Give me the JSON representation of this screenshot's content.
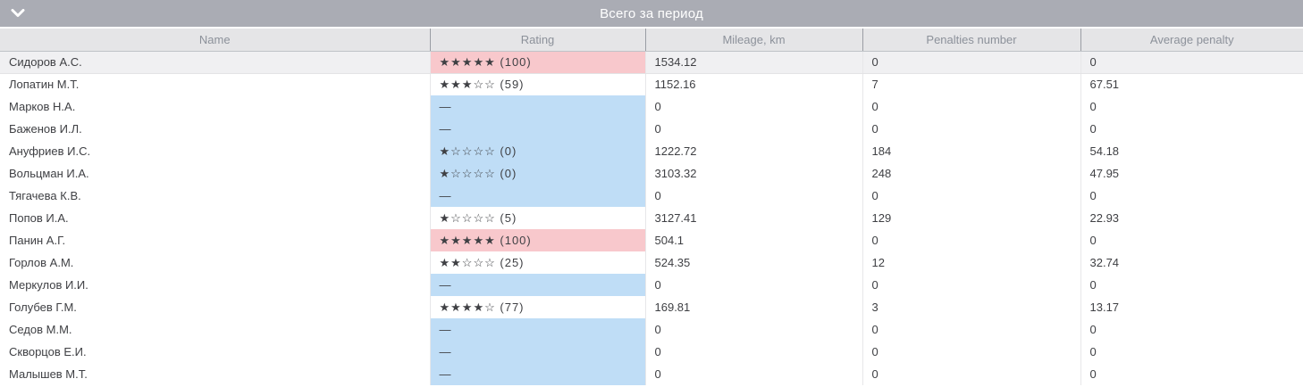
{
  "panel": {
    "title": "Всего за период"
  },
  "table": {
    "columns": [
      {
        "label": "Name"
      },
      {
        "label": "Rating"
      },
      {
        "label": "Mileage, km"
      },
      {
        "label": "Penalties number"
      },
      {
        "label": "Average penalty"
      }
    ],
    "rows": [
      {
        "name": "Сидоров А.С.",
        "rating": "★★★★★ (100)",
        "rating_highlight": "pink",
        "mileage": "1534.12",
        "penalties": "0",
        "avg_penalty": "0",
        "selected": true
      },
      {
        "name": "Лопатин М.Т.",
        "rating": "★★★☆☆ (59)",
        "rating_highlight": "none",
        "mileage": "1152.16",
        "penalties": "7",
        "avg_penalty": "67.51",
        "selected": false
      },
      {
        "name": "Марков Н.А.",
        "rating": "—",
        "rating_highlight": "blue",
        "mileage": "0",
        "penalties": "0",
        "avg_penalty": "0",
        "selected": false
      },
      {
        "name": "Баженов И.Л.",
        "rating": "—",
        "rating_highlight": "blue",
        "mileage": "0",
        "penalties": "0",
        "avg_penalty": "0",
        "selected": false
      },
      {
        "name": "Ануфриев И.С.",
        "rating": "★☆☆☆☆ (0)",
        "rating_highlight": "blue",
        "mileage": "1222.72",
        "penalties": "184",
        "avg_penalty": "54.18",
        "selected": false
      },
      {
        "name": "Вольцман И.А.",
        "rating": "★☆☆☆☆ (0)",
        "rating_highlight": "blue",
        "mileage": "3103.32",
        "penalties": "248",
        "avg_penalty": "47.95",
        "selected": false
      },
      {
        "name": "Тягачева К.В.",
        "rating": "—",
        "rating_highlight": "blue",
        "mileage": "0",
        "penalties": "0",
        "avg_penalty": "0",
        "selected": false
      },
      {
        "name": "Попов И.А.",
        "rating": "★☆☆☆☆ (5)",
        "rating_highlight": "none",
        "mileage": "3127.41",
        "penalties": "129",
        "avg_penalty": "22.93",
        "selected": false
      },
      {
        "name": "Панин А.Г.",
        "rating": "★★★★★ (100)",
        "rating_highlight": "pink",
        "mileage": "504.1",
        "penalties": "0",
        "avg_penalty": "0",
        "selected": false
      },
      {
        "name": "Горлов А.М.",
        "rating": "★★☆☆☆ (25)",
        "rating_highlight": "none",
        "mileage": "524.35",
        "penalties": "12",
        "avg_penalty": "32.74",
        "selected": false
      },
      {
        "name": "Меркулов И.И.",
        "rating": "—",
        "rating_highlight": "blue",
        "mileage": "0",
        "penalties": "0",
        "avg_penalty": "0",
        "selected": false
      },
      {
        "name": "Голубев Г.М.",
        "rating": "★★★★☆ (77)",
        "rating_highlight": "none",
        "mileage": "169.81",
        "penalties": "3",
        "avg_penalty": "13.17",
        "selected": false
      },
      {
        "name": "Седов М.М.",
        "rating": "—",
        "rating_highlight": "blue",
        "mileage": "0",
        "penalties": "0",
        "avg_penalty": "0",
        "selected": false
      },
      {
        "name": "Скворцов Е.И.",
        "rating": "—",
        "rating_highlight": "blue",
        "mileage": "0",
        "penalties": "0",
        "avg_penalty": "0",
        "selected": false
      },
      {
        "name": "Малышев М.Т.",
        "rating": "—",
        "rating_highlight": "blue",
        "mileage": "0",
        "penalties": "0",
        "avg_penalty": "0",
        "selected": false
      }
    ]
  },
  "icons": {
    "collapse": "chevron-down-icon"
  },
  "colors": {
    "title_bar": "#aaacb4",
    "header_bg": "#e5e5e7",
    "header_text": "#8c919a",
    "rating_pink": "#f8c8cc",
    "rating_blue": "#bfddf6",
    "selected_row": "#f0f0f2",
    "cell_text": "#3f4044"
  }
}
